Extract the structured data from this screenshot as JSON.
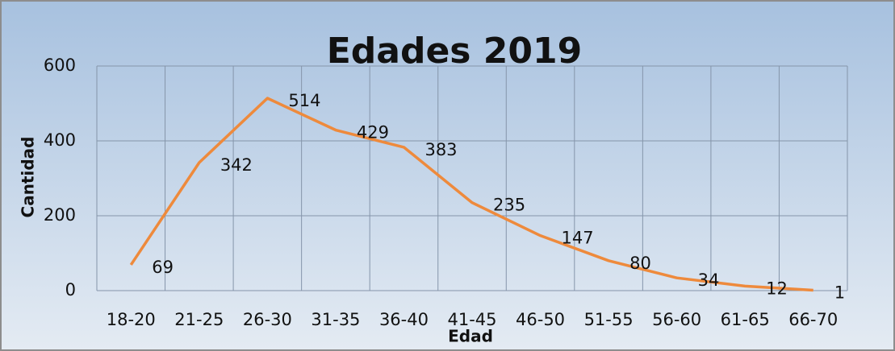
{
  "chart_data": {
    "type": "line",
    "title": "Edades  2019",
    "xlabel": "Edad",
    "ylabel": "Cantidad",
    "categories": [
      "18-20",
      "21-25",
      "26-30",
      "31-35",
      "36-40",
      "41-45",
      "46-50",
      "51-55",
      "56-60",
      "61-65",
      "66-70"
    ],
    "values": [
      69,
      342,
      514,
      429,
      383,
      235,
      147,
      80,
      34,
      12,
      1
    ],
    "color": "#ee8a3c",
    "ylim": [
      0,
      600
    ],
    "yticks": [
      0,
      200,
      400,
      600
    ],
    "grid": true
  }
}
